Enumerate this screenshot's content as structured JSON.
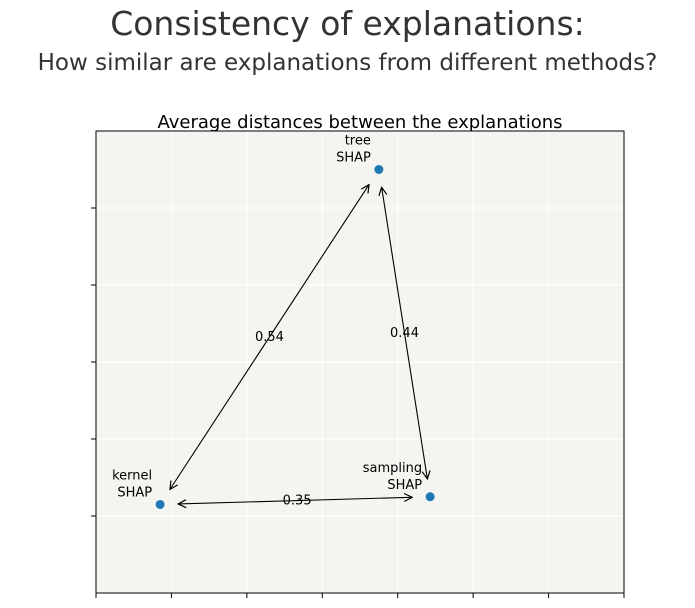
{
  "header": {
    "title": "Consistency of explanations:",
    "subtitle": "How similar are explanations from different methods?"
  },
  "chart_data": {
    "type": "scatter",
    "title": "Average distances between the explanations",
    "xlabel": "",
    "ylabel": "",
    "xlim": [
      0,
      7
    ],
    "ylim": [
      0,
      6
    ],
    "grid": true,
    "tick_labels_shown": false,
    "colors": {
      "background": "#f4f4f0",
      "point": "#1f77b4",
      "grid": "#ffffff",
      "arrow": "#000000"
    },
    "points": [
      {
        "name": "tree SHAP",
        "label_lines": [
          "tree",
          "SHAP"
        ],
        "x": 3.75,
        "y": 5.5
      },
      {
        "name": "sampling SHAP",
        "label_lines": [
          "sampling",
          "SHAP"
        ],
        "x": 4.43,
        "y": 1.25
      },
      {
        "name": "kernel SHAP",
        "label_lines": [
          "kernel",
          "SHAP"
        ],
        "x": 0.85,
        "y": 1.15
      }
    ],
    "distances": [
      {
        "from": "tree SHAP",
        "to": "kernel SHAP",
        "value": "0.54"
      },
      {
        "from": "tree SHAP",
        "to": "sampling SHAP",
        "value": "0.44"
      },
      {
        "from": "kernel SHAP",
        "to": "sampling SHAP",
        "value": "0.35"
      }
    ]
  }
}
